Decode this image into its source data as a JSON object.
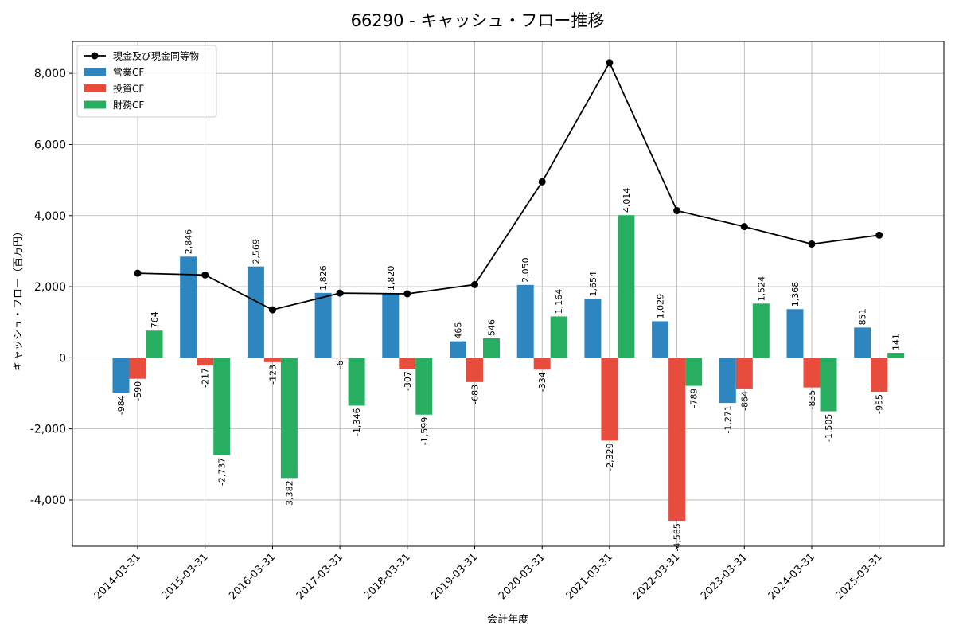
{
  "chart_data": {
    "type": "bar",
    "title": "66290 - キャッシュ・フロー推移",
    "xlabel": "会計年度",
    "ylabel": "キャッシュ・フロー（百万円）",
    "ylim": [
      -5300,
      8900
    ],
    "yticks": [
      -4000,
      -2000,
      0,
      2000,
      4000,
      6000,
      8000
    ],
    "ytick_labels": [
      "-4,000",
      "-2,000",
      "0",
      "2,000",
      "4,000",
      "6,000",
      "8,000"
    ],
    "grid": true,
    "legend_position": "top-left",
    "categories": [
      "2014-03-31",
      "2015-03-31",
      "2016-03-31",
      "2017-03-31",
      "2018-03-31",
      "2019-03-31",
      "2020-03-31",
      "2021-03-31",
      "2022-03-31",
      "2023-03-31",
      "2024-03-31",
      "2025-03-31"
    ],
    "series": [
      {
        "name": "営業CF",
        "kind": "bar",
        "color": "#2e86c1",
        "values": [
          -984,
          2846,
          2569,
          1826,
          1820,
          465,
          2050,
          1654,
          1029,
          -1271,
          1368,
          851
        ],
        "labels": [
          "-984",
          "2,846",
          "2,569",
          "1,826",
          "1,820",
          "465",
          "2,050",
          "1,654",
          "1,029",
          "-1,271",
          "1,368",
          "851"
        ]
      },
      {
        "name": "投資CF",
        "kind": "bar",
        "color": "#e74c3c",
        "values": [
          -590,
          -217,
          -123,
          -6,
          -307,
          -683,
          -334,
          -2329,
          -4585,
          -864,
          -835,
          -955
        ],
        "labels": [
          "-590",
          "-217",
          "-123",
          "-6",
          "-307",
          "-683",
          "-334",
          "-2,329",
          "-4,585",
          "-864",
          "-835",
          "-955"
        ]
      },
      {
        "name": "財務CF",
        "kind": "bar",
        "color": "#27ae60",
        "values": [
          764,
          -2737,
          -3382,
          -1346,
          -1599,
          546,
          1164,
          4014,
          -789,
          1524,
          -1505,
          141
        ],
        "labels": [
          "764",
          "-2,737",
          "-3,382",
          "-1,346",
          "-1,599",
          "546",
          "1,164",
          "4,014",
          "-789",
          "1,524",
          "-1,505",
          "141"
        ]
      },
      {
        "name": "現金及び現金同等物",
        "kind": "line",
        "color": "#000000",
        "values": [
          2380,
          2330,
          1350,
          1820,
          1800,
          2060,
          4950,
          8300,
          4140,
          3690,
          3200,
          3450
        ]
      }
    ]
  }
}
